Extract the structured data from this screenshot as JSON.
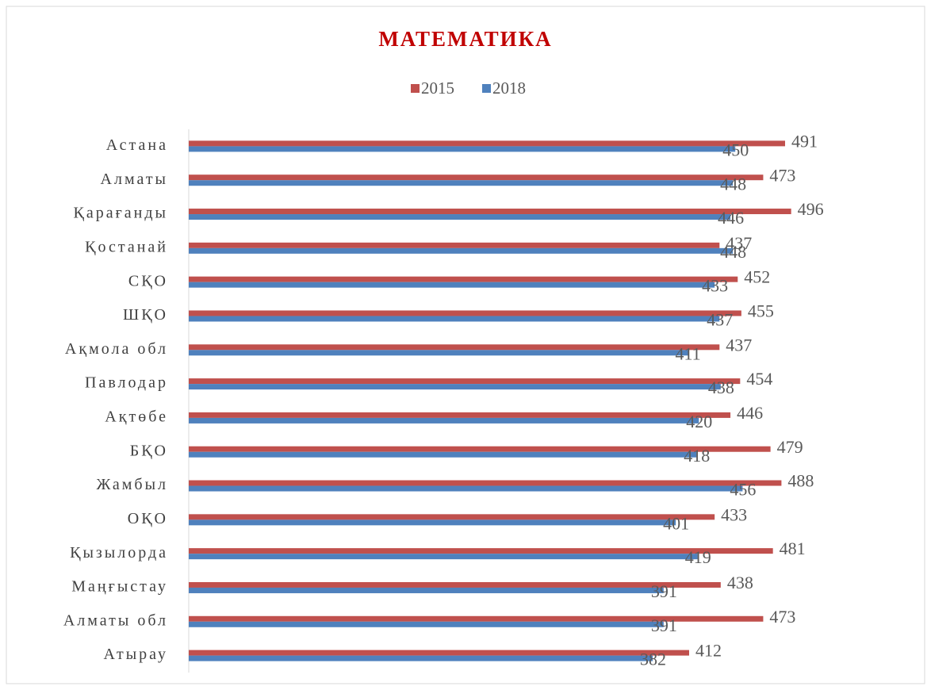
{
  "chart_data": {
    "type": "barh",
    "title": "МАТЕМАТИКА",
    "categories": [
      "Астана",
      "Алматы",
      "Қарағанды",
      "Қостанай",
      "СҚО",
      "ШҚО",
      "Ақмола обл",
      "Павлодар",
      "Ақтөбе",
      "БҚО",
      "Жамбыл",
      "ОҚО",
      "Қызылорда",
      "Маңғыстау",
      "Алматы обл",
      "Атырау"
    ],
    "series": [
      {
        "name": "2015",
        "color": "#c0504d",
        "values": [
          491,
          473,
          496,
          437,
          452,
          455,
          437,
          454,
          446,
          479,
          488,
          433,
          481,
          438,
          473,
          412
        ]
      },
      {
        "name": "2018",
        "color": "#4f81bd",
        "values": [
          450,
          448,
          446,
          448,
          433,
          437,
          411,
          438,
          420,
          418,
          456,
          401,
          419,
          391,
          391,
          382
        ]
      }
    ],
    "xlim": [
      0,
      602
    ],
    "legend": "top"
  }
}
